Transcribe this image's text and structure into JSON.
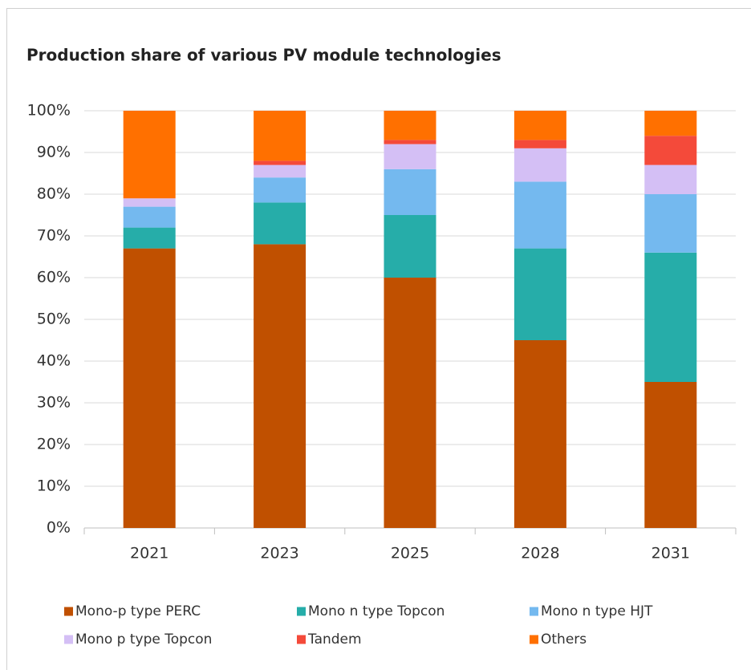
{
  "chart_data": {
    "type": "stacked_bar",
    "title": "Production share of various PV module technologies",
    "categories": [
      "2021",
      "2023",
      "2025",
      "2028",
      "2031"
    ],
    "series": [
      {
        "name": "Mono-p type PERC",
        "color": "#c05000",
        "values": [
          67,
          68,
          60,
          45,
          35
        ]
      },
      {
        "name": "Mono n type Topcon",
        "color": "#26ada9",
        "values": [
          5,
          10,
          15,
          22,
          31
        ]
      },
      {
        "name": "Mono n type HJT",
        "color": "#74b9ef",
        "values": [
          5,
          6,
          11,
          16,
          14
        ]
      },
      {
        "name": "Mono p type Topcon",
        "color": "#d4bff5",
        "values": [
          2,
          3,
          6,
          8,
          7
        ]
      },
      {
        "name": "Tandem",
        "color": "#f44a3a",
        "values": [
          0,
          1,
          1,
          2,
          7
        ]
      },
      {
        "name": "Others",
        "color": "#ff7000",
        "values": [
          21,
          12,
          7,
          7,
          6
        ]
      }
    ],
    "ylim": [
      0,
      100
    ],
    "yticks": [
      {
        "value": 0,
        "label": "0%"
      },
      {
        "value": 10,
        "label": "10%"
      },
      {
        "value": 20,
        "label": "20%"
      },
      {
        "value": 30,
        "label": "30%"
      },
      {
        "value": 40,
        "label": "40%"
      },
      {
        "value": 50,
        "label": "50%"
      },
      {
        "value": 60,
        "label": "60%"
      },
      {
        "value": 70,
        "label": "70%"
      },
      {
        "value": 80,
        "label": "80%"
      },
      {
        "value": 90,
        "label": "90%"
      },
      {
        "value": 100,
        "label": "100%"
      }
    ],
    "grid": true
  }
}
